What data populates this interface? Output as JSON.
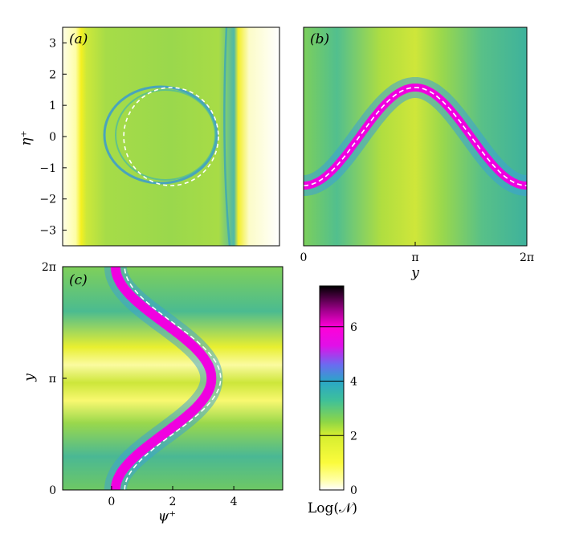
{
  "colors": {
    "field_low": "#ffffc8",
    "field_yellow": "#f2f01c",
    "field_green": "#8ed646",
    "field_teal": "#2bb7a8",
    "field_blue": "#3a8fd4",
    "field_magenta": "#f000e0",
    "dashed_curve": "#ffffff"
  },
  "chart_data": [
    {
      "id": "a",
      "type": "heatmap",
      "panel_label": "(a)",
      "title": "",
      "xlabel": "",
      "ylabel": "η⁺",
      "xlim": [
        -1.6,
        5.6
      ],
      "ylim": [
        -3.5,
        3.5
      ],
      "x_ticks": [],
      "y_ticks": [
        {
          "value": -3,
          "label": "−3"
        },
        {
          "value": -2,
          "label": "−2"
        },
        {
          "value": -1,
          "label": "−1"
        },
        {
          "value": 0,
          "label": "0"
        },
        {
          "value": 1,
          "label": "1"
        },
        {
          "value": 2,
          "label": "2"
        },
        {
          "value": 3,
          "label": "3"
        }
      ],
      "overlay": {
        "shape": "circle",
        "style": "dashed",
        "center": [
          2.0,
          0.0
        ],
        "radius": 1.57
      }
    },
    {
      "id": "b",
      "type": "heatmap",
      "panel_label": "(b)",
      "title": "",
      "xlabel": "y",
      "ylabel": "",
      "xlim": [
        0,
        6.2832
      ],
      "ylim": [
        -3.5,
        3.5
      ],
      "x_ticks": [
        {
          "value": 0,
          "label": "0"
        },
        {
          "value": 3.1416,
          "label": "π"
        },
        {
          "value": 6.2832,
          "label": "2π"
        }
      ],
      "y_ticks": [],
      "overlay": {
        "shape": "curve",
        "style": "dashed",
        "equation": "η⁺ = −(π/2)·cos(y)"
      }
    },
    {
      "id": "c",
      "type": "heatmap",
      "panel_label": "(c)",
      "title": "",
      "xlabel": "ψ⁺",
      "ylabel": "y",
      "xlim": [
        -1.6,
        5.6
      ],
      "ylim": [
        0,
        6.2832
      ],
      "x_ticks": [
        {
          "value": 0,
          "label": "0"
        },
        {
          "value": 2,
          "label": "2"
        },
        {
          "value": 4,
          "label": "4"
        }
      ],
      "y_ticks": [
        {
          "value": 0,
          "label": "0"
        },
        {
          "value": 3.1416,
          "label": "π"
        },
        {
          "value": 6.2832,
          "label": "2π"
        }
      ],
      "overlay": {
        "shape": "curve",
        "style": "dashed",
        "equation": "ψ⁺ = 2 − 1.57·cos(y)"
      }
    }
  ],
  "colorbar": {
    "label": "Log(𝒩)",
    "range": [
      0,
      7.5
    ],
    "ticks": [
      {
        "value": 0,
        "label": "0"
      },
      {
        "value": 2,
        "label": "2"
      },
      {
        "value": 4,
        "label": "4"
      },
      {
        "value": 6,
        "label": "6"
      }
    ],
    "stops": [
      {
        "value": 0,
        "color": "#ffffff"
      },
      {
        "value": 0.4,
        "color": "#ffffa0"
      },
      {
        "value": 1.0,
        "color": "#fbfb3c"
      },
      {
        "value": 2.0,
        "color": "#d6ee30"
      },
      {
        "value": 2.5,
        "color": "#8ed646"
      },
      {
        "value": 3.3,
        "color": "#3ec09a"
      },
      {
        "value": 4.0,
        "color": "#2aa6c8"
      },
      {
        "value": 4.6,
        "color": "#6a6cf0"
      },
      {
        "value": 5.3,
        "color": "#e010e8"
      },
      {
        "value": 6.0,
        "color": "#ff00d8"
      },
      {
        "value": 6.6,
        "color": "#a0008c"
      },
      {
        "value": 7.5,
        "color": "#000000"
      }
    ]
  }
}
